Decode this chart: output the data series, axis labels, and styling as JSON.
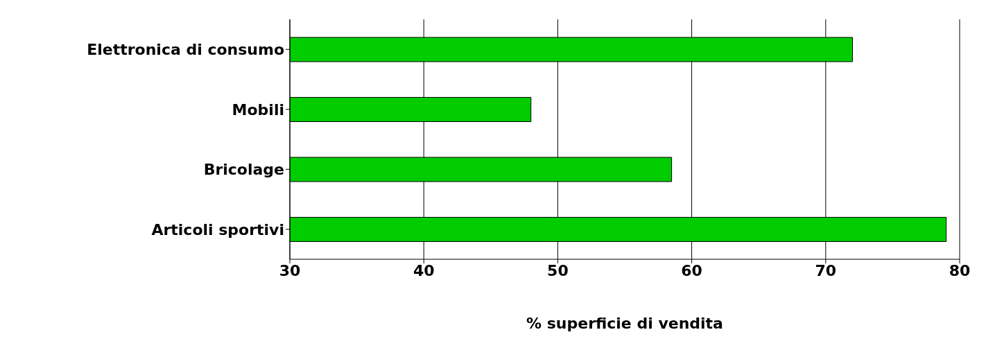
{
  "chart_data": {
    "type": "bar",
    "orientation": "horizontal",
    "xlabel": "% superficie di vendita",
    "categories": [
      "Elettronica di consumo",
      "Mobili",
      "Bricolage",
      "Articoli sportivi"
    ],
    "values": [
      72,
      48,
      58.5,
      79
    ],
    "color": "#00cc00",
    "xlim": [
      30,
      80
    ],
    "xticks": [
      30,
      40,
      50,
      60,
      70,
      80
    ],
    "grid": "x"
  }
}
